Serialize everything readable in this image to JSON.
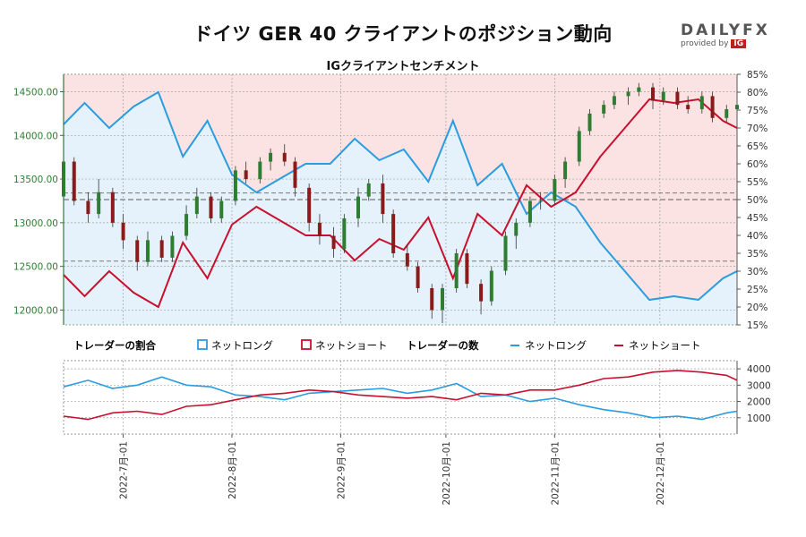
{
  "title": "ドイツ GER 40 クライアントのポジション動向",
  "subtitle": "IGクライアントセンチメント",
  "brand": {
    "name": "DAILYFX",
    "by": "provided by",
    "ig": "IG"
  },
  "legend": {
    "ratio_title": "トレーダーの割合",
    "count_title": "トレーダーの数",
    "net_long": "ネットロング",
    "net_short": "ネットショート"
  },
  "colors": {
    "long": "#2a9ce0",
    "short": "#c8102e",
    "candle_up": "#2e7d32",
    "candle_down": "#8b1a1a",
    "bg_long": "#e6f2fb",
    "bg_short": "#fbe3e3",
    "axis_price": "#2e7d32"
  },
  "chart_data": [
    {
      "type": "line",
      "panel": "sentiment",
      "title": "IGクライアントセンチメント",
      "x_axis": "date",
      "xlim": [
        "2022-06-14",
        "2022-12-23"
      ],
      "price_axis": {
        "label_side": "left",
        "ylim": [
          11830,
          14700
        ],
        "ticks": [
          12000,
          12500,
          13000,
          13500,
          14000,
          14500
        ],
        "tick_labels": [
          "12000.00",
          "12500.00",
          "13000.00",
          "13500.00",
          "14000.00",
          "14500.00"
        ]
      },
      "percent_axis": {
        "label_side": "right",
        "ylim": [
          15,
          85
        ],
        "ticks": [
          15,
          20,
          25,
          30,
          35,
          40,
          45,
          50,
          55,
          60,
          65,
          70,
          75,
          80,
          85
        ],
        "tick_labels": [
          "15%",
          "20%",
          "25%",
          "30%",
          "35%",
          "40%",
          "45%",
          "50%",
          "55%",
          "60%",
          "65%",
          "70%",
          "75%",
          "80%",
          "85%"
        ]
      },
      "series": [
        {
          "name": "ネットロング",
          "dates": [
            "2022-06-14",
            "2022-06-20",
            "2022-06-27",
            "2022-07-04",
            "2022-07-11",
            "2022-07-18",
            "2022-07-25",
            "2022-08-01",
            "2022-08-08",
            "2022-08-15",
            "2022-08-22",
            "2022-08-29",
            "2022-09-05",
            "2022-09-12",
            "2022-09-19",
            "2022-09-26",
            "2022-10-03",
            "2022-10-10",
            "2022-10-17",
            "2022-10-24",
            "2022-10-31",
            "2022-11-07",
            "2022-11-14",
            "2022-11-21",
            "2022-11-28",
            "2022-12-05",
            "2022-12-12",
            "2022-12-19",
            "2022-12-23"
          ],
          "values": [
            71,
            77,
            70,
            76,
            80,
            62,
            72,
            57,
            52,
            56,
            60,
            60,
            67,
            61,
            64,
            55,
            72,
            54,
            60,
            46,
            52,
            48,
            38,
            30,
            22,
            23,
            22,
            28,
            30
          ]
        },
        {
          "name": "ネットショート",
          "dates": [
            "2022-06-14",
            "2022-06-20",
            "2022-06-27",
            "2022-07-04",
            "2022-07-11",
            "2022-07-18",
            "2022-07-25",
            "2022-08-01",
            "2022-08-08",
            "2022-08-15",
            "2022-08-22",
            "2022-08-29",
            "2022-09-05",
            "2022-09-12",
            "2022-09-19",
            "2022-09-26",
            "2022-10-03",
            "2022-10-10",
            "2022-10-17",
            "2022-10-24",
            "2022-10-31",
            "2022-11-07",
            "2022-11-14",
            "2022-11-21",
            "2022-11-28",
            "2022-12-05",
            "2022-12-12",
            "2022-12-19",
            "2022-12-23"
          ],
          "values": [
            29,
            23,
            30,
            24,
            20,
            38,
            28,
            43,
            48,
            44,
            40,
            40,
            33,
            39,
            36,
            45,
            28,
            46,
            40,
            54,
            48,
            52,
            62,
            70,
            78,
            77,
            78,
            72,
            70
          ]
        }
      ],
      "guides": [
        {
          "kind": "price",
          "value": 13340
        },
        {
          "kind": "price",
          "value": 12560
        },
        {
          "kind": "percent",
          "value": 50
        }
      ],
      "grid": true
    },
    {
      "type": "candlestick",
      "panel": "sentiment",
      "name": "GER 40",
      "ohlc": [
        [
          "2022-06-14",
          13300,
          13800,
          13150,
          13700
        ],
        [
          "2022-06-17",
          13700,
          13750,
          13200,
          13250
        ],
        [
          "2022-06-21",
          13250,
          13350,
          13000,
          13100
        ],
        [
          "2022-06-24",
          13100,
          13500,
          13050,
          13350
        ],
        [
          "2022-06-28",
          13350,
          13400,
          12950,
          13000
        ],
        [
          "2022-07-01",
          13000,
          13100,
          12700,
          12800
        ],
        [
          "2022-07-05",
          12800,
          12850,
          12450,
          12550
        ],
        [
          "2022-07-08",
          12550,
          12900,
          12500,
          12800
        ],
        [
          "2022-07-12",
          12800,
          12850,
          12550,
          12600
        ],
        [
          "2022-07-15",
          12600,
          12900,
          12550,
          12850
        ],
        [
          "2022-07-19",
          12850,
          13200,
          12800,
          13100
        ],
        [
          "2022-07-22",
          13100,
          13400,
          13050,
          13300
        ],
        [
          "2022-07-26",
          13300,
          13350,
          13000,
          13050
        ],
        [
          "2022-07-29",
          13050,
          13300,
          13000,
          13250
        ],
        [
          "2022-08-02",
          13250,
          13650,
          13200,
          13600
        ],
        [
          "2022-08-05",
          13600,
          13700,
          13450,
          13500
        ],
        [
          "2022-08-09",
          13500,
          13750,
          13450,
          13700
        ],
        [
          "2022-08-12",
          13700,
          13850,
          13600,
          13800
        ],
        [
          "2022-08-16",
          13800,
          13900,
          13650,
          13700
        ],
        [
          "2022-08-19",
          13700,
          13750,
          13300,
          13400
        ],
        [
          "2022-08-23",
          13400,
          13450,
          12900,
          13000
        ],
        [
          "2022-08-26",
          13000,
          13100,
          12750,
          12850
        ],
        [
          "2022-08-30",
          12850,
          12950,
          12600,
          12700
        ],
        [
          "2022-09-02",
          12700,
          13100,
          12650,
          13050
        ],
        [
          "2022-09-06",
          13050,
          13400,
          12950,
          13300
        ],
        [
          "2022-09-09",
          13300,
          13500,
          13250,
          13450
        ],
        [
          "2022-09-13",
          13450,
          13550,
          13000,
          13100
        ],
        [
          "2022-09-16",
          13100,
          13150,
          12600,
          12650
        ],
        [
          "2022-09-20",
          12650,
          12750,
          12450,
          12500
        ],
        [
          "2022-09-23",
          12500,
          12550,
          12200,
          12250
        ],
        [
          "2022-09-27",
          12250,
          12300,
          11900,
          12000
        ],
        [
          "2022-09-30",
          12000,
          12300,
          11850,
          12250
        ],
        [
          "2022-10-04",
          12250,
          12700,
          12200,
          12650
        ],
        [
          "2022-10-07",
          12650,
          12700,
          12250,
          12300
        ],
        [
          "2022-10-11",
          12300,
          12350,
          11950,
          12100
        ],
        [
          "2022-10-14",
          12100,
          12500,
          12050,
          12450
        ],
        [
          "2022-10-18",
          12450,
          12900,
          12400,
          12850
        ],
        [
          "2022-10-21",
          12850,
          13050,
          12700,
          13000
        ],
        [
          "2022-10-25",
          13000,
          13300,
          12950,
          13250
        ],
        [
          "2022-10-28",
          13250,
          13350,
          13150,
          13250
        ],
        [
          "2022-11-01",
          13250,
          13550,
          13200,
          13500
        ],
        [
          "2022-11-04",
          13500,
          13750,
          13400,
          13700
        ],
        [
          "2022-11-08",
          13700,
          14100,
          13650,
          14050
        ],
        [
          "2022-11-11",
          14050,
          14300,
          14000,
          14250
        ],
        [
          "2022-11-15",
          14250,
          14400,
          14200,
          14350
        ],
        [
          "2022-11-18",
          14350,
          14500,
          14300,
          14450
        ],
        [
          "2022-11-22",
          14450,
          14550,
          14350,
          14500
        ],
        [
          "2022-11-25",
          14500,
          14600,
          14450,
          14550
        ],
        [
          "2022-11-29",
          14550,
          14600,
          14300,
          14400
        ],
        [
          "2022-12-02",
          14400,
          14550,
          14350,
          14500
        ],
        [
          "2022-12-06",
          14500,
          14550,
          14300,
          14350
        ],
        [
          "2022-12-09",
          14350,
          14450,
          14250,
          14300
        ],
        [
          "2022-12-13",
          14300,
          14500,
          14250,
          14450
        ],
        [
          "2022-12-16",
          14450,
          14500,
          14150,
          14200
        ],
        [
          "2022-12-20",
          14200,
          14350,
          14150,
          14300
        ],
        [
          "2022-12-23",
          14300,
          14400,
          14200,
          14350
        ]
      ]
    },
    {
      "type": "line",
      "panel": "trader_count",
      "title": "トレーダーの数",
      "x_axis": "date",
      "xlim": [
        "2022-06-14",
        "2022-12-23"
      ],
      "ylim": [
        0,
        4500
      ],
      "yticks": [
        1000,
        2000,
        3000,
        4000
      ],
      "ytick_labels": [
        "1000",
        "2000",
        "3000",
        "4000"
      ],
      "xticks": [
        "2022-07-01",
        "2022-08-01",
        "2022-09-01",
        "2022-10-01",
        "2022-11-01",
        "2022-12-01"
      ],
      "xtick_labels": [
        "2022-7月-01",
        "2022-8月-01",
        "2022-9月-01",
        "2022-10月-01",
        "2022-11月-01",
        "2022-12月-01"
      ],
      "series": [
        {
          "name": "ネットロング",
          "dates": [
            "2022-06-14",
            "2022-06-21",
            "2022-06-28",
            "2022-07-05",
            "2022-07-12",
            "2022-07-19",
            "2022-07-26",
            "2022-08-02",
            "2022-08-09",
            "2022-08-16",
            "2022-08-23",
            "2022-08-30",
            "2022-09-06",
            "2022-09-13",
            "2022-09-20",
            "2022-09-27",
            "2022-10-04",
            "2022-10-11",
            "2022-10-18",
            "2022-10-25",
            "2022-11-01",
            "2022-11-08",
            "2022-11-15",
            "2022-11-22",
            "2022-11-29",
            "2022-12-06",
            "2022-12-13",
            "2022-12-20",
            "2022-12-23"
          ],
          "values": [
            2900,
            3300,
            2800,
            3000,
            3500,
            3000,
            2900,
            2400,
            2300,
            2100,
            2500,
            2600,
            2700,
            2800,
            2500,
            2700,
            3100,
            2300,
            2400,
            2000,
            2200,
            1800,
            1500,
            1300,
            1000,
            1100,
            900,
            1300,
            1400
          ]
        },
        {
          "name": "ネットショート",
          "dates": [
            "2022-06-14",
            "2022-06-21",
            "2022-06-28",
            "2022-07-05",
            "2022-07-12",
            "2022-07-19",
            "2022-07-26",
            "2022-08-02",
            "2022-08-09",
            "2022-08-16",
            "2022-08-23",
            "2022-08-30",
            "2022-09-06",
            "2022-09-13",
            "2022-09-20",
            "2022-09-27",
            "2022-10-04",
            "2022-10-11",
            "2022-10-18",
            "2022-10-25",
            "2022-11-01",
            "2022-11-08",
            "2022-11-15",
            "2022-11-22",
            "2022-11-29",
            "2022-12-06",
            "2022-12-13",
            "2022-12-20",
            "2022-12-23"
          ],
          "values": [
            1100,
            900,
            1300,
            1400,
            1200,
            1700,
            1800,
            2100,
            2400,
            2500,
            2700,
            2600,
            2400,
            2300,
            2200,
            2300,
            2100,
            2500,
            2400,
            2700,
            2700,
            3000,
            3400,
            3500,
            3800,
            3900,
            3800,
            3600,
            3300
          ]
        }
      ],
      "grid": true
    }
  ]
}
